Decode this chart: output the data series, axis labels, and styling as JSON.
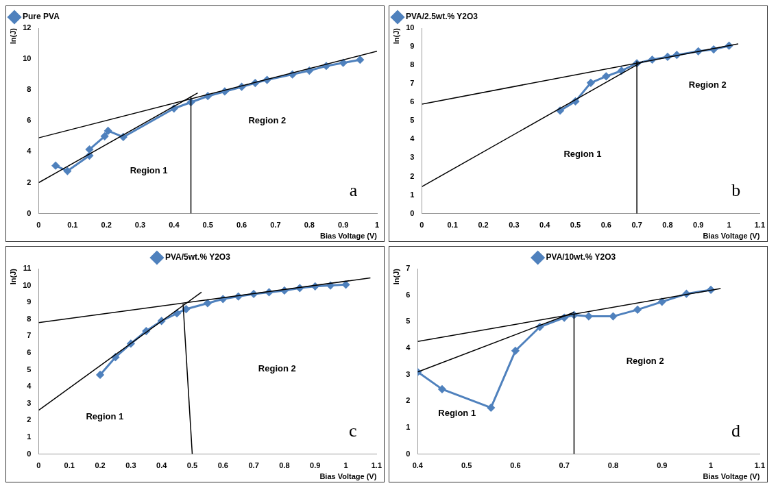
{
  "chart_data": [
    {
      "type": "line",
      "xlabel": "Bias Voltage (V)",
      "ylabel": "ln(J)",
      "xlim": [
        0,
        1
      ],
      "ylim": [
        0,
        12
      ],
      "xticks": [
        0,
        0.1,
        0.2,
        0.3,
        0.4,
        0.5,
        0.6,
        0.7,
        0.8,
        0.9,
        1
      ],
      "yticks": [
        0,
        2,
        4,
        6,
        8,
        10,
        12
      ],
      "marker": "diamond",
      "legend": "top left",
      "annotations": [
        "Region 1",
        "Region 2",
        "a"
      ],
      "series": [
        {
          "name": "Pure PVA",
          "color": "#4f81bd",
          "x": [
            0.05,
            0.085,
            0.15,
            0.15,
            0.195,
            0.205,
            0.25,
            0.4,
            0.45,
            0.5,
            0.55,
            0.6,
            0.64,
            0.675,
            0.75,
            0.8,
            0.85,
            0.9,
            0.95
          ],
          "values": [
            3.1,
            2.75,
            3.75,
            4.15,
            5.0,
            5.35,
            4.95,
            6.8,
            7.2,
            7.6,
            7.9,
            8.2,
            8.45,
            8.65,
            9.0,
            9.25,
            9.55,
            9.75,
            9.95
          ]
        },
        {
          "type": "line",
          "color": "#000000",
          "marker": "none",
          "x": [
            0,
            0.47
          ],
          "values": [
            2.0,
            7.8
          ]
        },
        {
          "type": "line",
          "color": "#000000",
          "marker": "none",
          "x": [
            0,
            1
          ],
          "values": [
            4.9,
            10.5
          ]
        },
        {
          "type": "line",
          "color": "#000000",
          "marker": "none",
          "x": [
            0.45,
            0.45
          ],
          "values": [
            0,
            7.6
          ]
        }
      ]
    },
    {
      "type": "line",
      "xlabel": "Bias Voltage (V)",
      "ylabel": "ln(J)",
      "xlim": [
        0,
        1.1
      ],
      "ylim": [
        0,
        10
      ],
      "xticks": [
        0,
        0.1,
        0.2,
        0.3,
        0.4,
        0.5,
        0.6,
        0.7,
        0.8,
        0.9,
        1,
        1.1
      ],
      "yticks": [
        0,
        1,
        2,
        3,
        4,
        5,
        6,
        7,
        8,
        9,
        10
      ],
      "marker": "diamond",
      "legend": "top left",
      "annotations": [
        "Region 1",
        "Region 2",
        "b"
      ],
      "series": [
        {
          "name": "PVA/2.5wt.% Y2O3",
          "color": "#4f81bd",
          "x": [
            0.45,
            0.5,
            0.55,
            0.6,
            0.65,
            0.7,
            0.75,
            0.8,
            0.83,
            0.9,
            0.95,
            1.0
          ],
          "values": [
            5.55,
            6.05,
            7.05,
            7.4,
            7.7,
            8.1,
            8.3,
            8.45,
            8.55,
            8.75,
            8.85,
            9.05
          ]
        },
        {
          "type": "line",
          "color": "#000000",
          "marker": "none",
          "x": [
            0,
            0.72
          ],
          "values": [
            1.45,
            8.2
          ]
        },
        {
          "type": "line",
          "color": "#000000",
          "marker": "none",
          "x": [
            0,
            1.03
          ],
          "values": [
            5.9,
            9.15
          ]
        },
        {
          "type": "line",
          "color": "#000000",
          "marker": "none",
          "x": [
            0.7,
            0.7
          ],
          "values": [
            8.2,
            0
          ]
        }
      ]
    },
    {
      "type": "line",
      "xlabel": "Bias Voltage (V)",
      "ylabel": "ln(J)",
      "xlim": [
        0,
        1.1
      ],
      "ylim": [
        0,
        11
      ],
      "xticks": [
        0,
        0.1,
        0.2,
        0.3,
        0.4,
        0.5,
        0.6,
        0.7,
        0.8,
        0.9,
        1,
        1.1
      ],
      "yticks": [
        0,
        1,
        2,
        3,
        4,
        5,
        6,
        7,
        8,
        9,
        10,
        11
      ],
      "marker": "diamond",
      "legend": "top",
      "annotations": [
        "Region 1",
        "Region 2",
        "c"
      ],
      "series": [
        {
          "name": "PVA/5wt.% Y2O3",
          "color": "#4f81bd",
          "x": [
            0.2,
            0.25,
            0.3,
            0.35,
            0.4,
            0.45,
            0.48,
            0.55,
            0.6,
            0.65,
            0.7,
            0.75,
            0.8,
            0.85,
            0.9,
            0.95,
            1.0
          ],
          "values": [
            4.7,
            5.75,
            6.55,
            7.3,
            7.9,
            8.35,
            8.6,
            8.95,
            9.2,
            9.35,
            9.5,
            9.6,
            9.7,
            9.85,
            9.95,
            10.0,
            10.05
          ]
        },
        {
          "type": "line",
          "color": "#000000",
          "marker": "none",
          "x": [
            0,
            0.53
          ],
          "values": [
            2.6,
            9.6
          ]
        },
        {
          "type": "line",
          "color": "#000000",
          "marker": "none",
          "x": [
            0,
            1.08
          ],
          "values": [
            7.8,
            10.45
          ]
        },
        {
          "type": "line",
          "color": "#000000",
          "marker": "none",
          "x": [
            0.47,
            0.5
          ],
          "values": [
            8.9,
            0
          ]
        }
      ]
    },
    {
      "type": "line",
      "xlabel": "Bias Voltage (V)",
      "ylabel": "ln(J)",
      "xlim": [
        0.4,
        1.1
      ],
      "ylim": [
        0,
        7
      ],
      "xticks": [
        0.4,
        0.5,
        0.6,
        0.7,
        0.8,
        0.9,
        1,
        1.1
      ],
      "yticks": [
        0,
        1,
        2,
        3,
        4,
        5,
        6,
        7
      ],
      "marker": "diamond",
      "legend": "top",
      "annotations": [
        "Region 1",
        "Region 2",
        "d"
      ],
      "series": [
        {
          "name": "PVA/10wt.% Y2O3",
          "color": "#4f81bd",
          "x": [
            0.4,
            0.45,
            0.55,
            0.6,
            0.65,
            0.7,
            0.72,
            0.75,
            0.8,
            0.85,
            0.9,
            0.95,
            1.0
          ],
          "values": [
            3.1,
            2.45,
            1.75,
            3.9,
            4.8,
            5.15,
            5.25,
            5.2,
            5.2,
            5.45,
            5.75,
            6.05,
            6.2
          ]
        },
        {
          "type": "line",
          "color": "#000000",
          "marker": "none",
          "x": [
            0.4,
            0.72
          ],
          "values": [
            3.1,
            5.35
          ]
        },
        {
          "type": "line",
          "color": "#000000",
          "marker": "none",
          "x": [
            0.4,
            1.02
          ],
          "values": [
            4.25,
            6.25
          ]
        },
        {
          "type": "line",
          "color": "#000000",
          "marker": "none",
          "x": [
            0.72,
            0.72
          ],
          "values": [
            0,
            5.3
          ]
        }
      ]
    }
  ]
}
